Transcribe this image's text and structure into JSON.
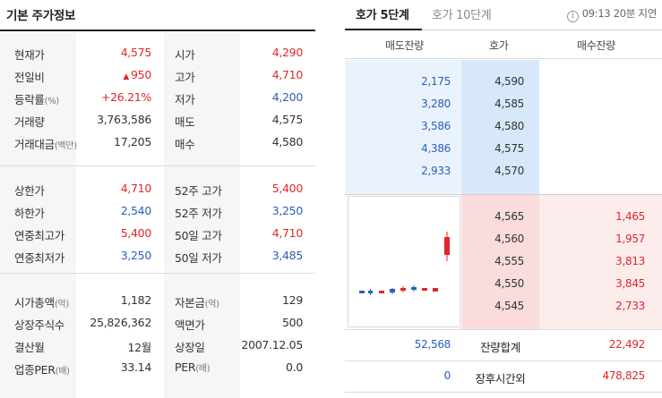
{
  "basic_info": {
    "title": "기본 주가정보",
    "section1": [
      {
        "label": "현재가",
        "unit": "",
        "value": "4,575",
        "color": "red",
        "label2": "시가",
        "unit2": "",
        "value2": "4,290",
        "color2": "red"
      },
      {
        "label": "전일비",
        "unit": "",
        "value": "950",
        "prefix": "▲",
        "color": "red",
        "label2": "고가",
        "unit2": "",
        "value2": "4,710",
        "color2": "red"
      },
      {
        "label": "등락률",
        "unit": "(%)",
        "value": "+26.21%",
        "color": "red",
        "label2": "저가",
        "unit2": "",
        "value2": "4,200",
        "color2": "blue"
      },
      {
        "label": "거래량",
        "unit": "",
        "value": "3,763,586",
        "color": "dark",
        "label2": "매도",
        "unit2": "",
        "value2": "4,575",
        "color2": "dark"
      },
      {
        "label": "거래대금",
        "unit": "(백만)",
        "value": "17,205",
        "color": "dark",
        "label2": "매수",
        "unit2": "",
        "value2": "4,580",
        "color2": "dark"
      }
    ],
    "section2": [
      {
        "label": "상한가",
        "unit": "",
        "value": "4,710",
        "color": "red",
        "label2": "52주 고가",
        "unit2": "",
        "value2": "5,400",
        "color2": "red"
      },
      {
        "label": "하한가",
        "unit": "",
        "value": "2,540",
        "color": "blue",
        "label2": "52주 저가",
        "unit2": "",
        "value2": "3,250",
        "color2": "blue"
      },
      {
        "label": "연중최고가",
        "unit": "",
        "value": "5,400",
        "color": "red",
        "label2": "50일 고가",
        "unit2": "",
        "value2": "4,710",
        "color2": "red"
      },
      {
        "label": "연중최저가",
        "unit": "",
        "value": "3,250",
        "color": "blue",
        "label2": "50일 저가",
        "unit2": "",
        "value2": "3,485",
        "color2": "blue"
      }
    ],
    "section3": [
      {
        "label": "시가총액",
        "unit": "(억)",
        "value": "1,182",
        "color": "dark",
        "label2": "자본금",
        "unit2": "(억)",
        "value2": "129",
        "color2": "dark"
      },
      {
        "label": "상장주식수",
        "unit": "",
        "value": "25,826,362",
        "color": "dark",
        "label2": "액면가",
        "unit2": "",
        "value2": "500",
        "color2": "dark"
      },
      {
        "label": "결산월",
        "unit": "",
        "value": "12월",
        "color": "dark",
        "label2": "상장일",
        "unit2": "",
        "value2": "2007.12.05",
        "color2": "dark"
      },
      {
        "label": "업종PER",
        "unit": "(배)",
        "value": "33.14",
        "color": "dark",
        "label2": "PER",
        "unit2": "(배)",
        "value2": "0.0",
        "color2": "dark"
      }
    ]
  },
  "orderbook": {
    "tabs": [
      {
        "label": "호가 5단계",
        "active": true
      },
      {
        "label": "호가 10단계",
        "active": false
      }
    ],
    "info_icon": "info-icon",
    "delay_text": "09:13 20분 지연",
    "headers": {
      "ask_qty": "매도잔량",
      "price": "호가",
      "bid_qty": "매수잔량"
    },
    "asks": [
      {
        "qty": "2,175",
        "price": "4,590"
      },
      {
        "qty": "3,280",
        "price": "4,585"
      },
      {
        "qty": "3,586",
        "price": "4,580"
      },
      {
        "qty": "4,386",
        "price": "4,575"
      },
      {
        "qty": "2,933",
        "price": "4,570"
      }
    ],
    "bids": [
      {
        "price": "4,565",
        "qty": "1,465"
      },
      {
        "price": "4,560",
        "qty": "1,957"
      },
      {
        "price": "4,555",
        "qty": "3,813"
      },
      {
        "price": "4,550",
        "qty": "3,845"
      },
      {
        "price": "4,545",
        "qty": "2,733"
      }
    ],
    "total": {
      "ask": "52,568",
      "label": "잔량합계",
      "bid": "22,492"
    },
    "after_hours": {
      "ask": "0",
      "label": "장후시간외",
      "bid": "478,825"
    },
    "colors": {
      "up": "#e0262d",
      "down": "#2d5fb9"
    }
  }
}
